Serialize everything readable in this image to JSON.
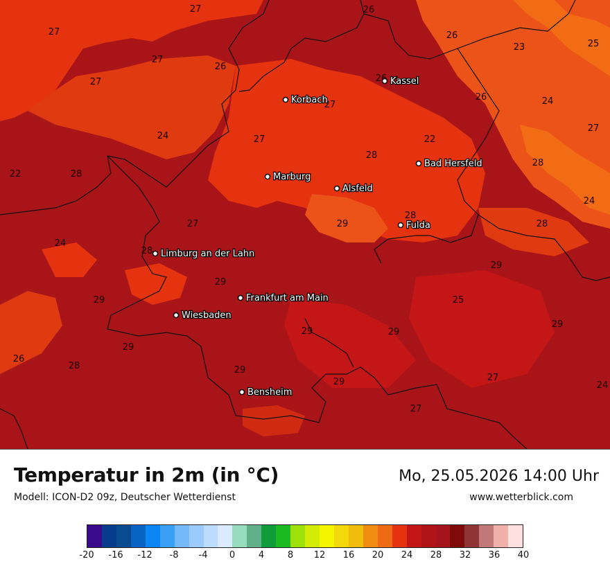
{
  "map": {
    "cities": [
      {
        "name": "Kassel"
      },
      {
        "name": "Korbach"
      },
      {
        "name": "Bad Hersfeld"
      },
      {
        "name": "Marburg"
      },
      {
        "name": "Alsfeld"
      },
      {
        "name": "Fulda"
      },
      {
        "name": "Limburg an der Lahn"
      },
      {
        "name": "Frankfurt am Main"
      },
      {
        "name": "Wiesbaden"
      },
      {
        "name": "Bensheim"
      }
    ],
    "temperature_labels": [
      "27",
      "26",
      "27",
      "27",
      "26",
      "27",
      "26",
      "23",
      "25",
      "26",
      "27",
      "26",
      "24",
      "27",
      "24",
      "27",
      "22",
      "28",
      "28",
      "22",
      "28",
      "24",
      "27",
      "29",
      "28",
      "24",
      "28",
      "28",
      "29",
      "29",
      "29",
      "25",
      "29",
      "29",
      "29",
      "29",
      "26",
      "28",
      "29",
      "29",
      "27",
      "24",
      "27"
    ]
  },
  "footer": {
    "title": "Temperatur in 2m (in °C)",
    "subtitle": "Modell: ICON-D2 09z, Deutscher Wetterdienst",
    "datetime": "Mo, 25.05.2026 14:00 Uhr",
    "site": "www.wetterblick.com"
  },
  "legend": {
    "colors": [
      "#3a0a8c",
      "#073c8c",
      "#0a4a8f",
      "#0863c4",
      "#0d86f5",
      "#3aa0f7",
      "#74bafa",
      "#9ccbfb",
      "#bcdcfd",
      "#daebfe",
      "#98dcc0",
      "#62b08a",
      "#0f9d3b",
      "#1cba20",
      "#9ee10a",
      "#d2eb07",
      "#f5f500",
      "#f3d80c",
      "#f1bd0d",
      "#f08c10",
      "#ef6a15",
      "#e5330f",
      "#c41617",
      "#b11416",
      "#a4141a",
      "#7f0a0a",
      "#8f3535",
      "#c07878",
      "#f0b0aa",
      "#fee0e0"
    ],
    "ticks": [
      "-20",
      "-16",
      "-12",
      "-8",
      "-4",
      "0",
      "4",
      "8",
      "12",
      "16",
      "20",
      "24",
      "28",
      "32",
      "36",
      "40"
    ]
  }
}
